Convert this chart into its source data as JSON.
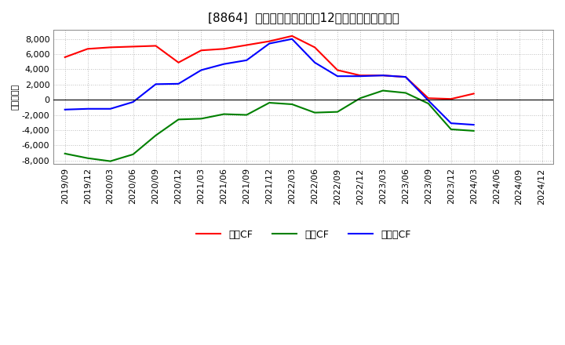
{
  "title": "[8864]  キャッシュフローの12か月移動合計の推移",
  "ylabel": "（百万円）",
  "background_color": "#ffffff",
  "plot_background": "#ffffff",
  "grid_color": "#aaaaaa",
  "ylim": [
    -8500,
    9200
  ],
  "yticks": [
    -8000,
    -6000,
    -4000,
    -2000,
    0,
    2000,
    4000,
    6000,
    8000
  ],
  "x_labels": [
    "2019/09",
    "2019/12",
    "2020/03",
    "2020/06",
    "2020/09",
    "2020/12",
    "2021/03",
    "2021/06",
    "2021/09",
    "2021/12",
    "2022/03",
    "2022/06",
    "2022/09",
    "2022/12",
    "2023/03",
    "2023/06",
    "2023/09",
    "2023/12",
    "2024/03",
    "2024/06",
    "2024/09",
    "2024/12"
  ],
  "operating_cf": [
    5600,
    6700,
    6900,
    7000,
    7100,
    4900,
    6500,
    6700,
    7200,
    7700,
    8400,
    6900,
    3900,
    3200,
    3200,
    3000,
    200,
    100,
    800,
    null,
    null,
    null
  ],
  "investing_cf": [
    -7100,
    -7700,
    -8100,
    -7200,
    -4700,
    -2600,
    -2500,
    -1900,
    -2000,
    -400,
    -600,
    -1700,
    -1600,
    200,
    1200,
    900,
    -500,
    -3900,
    -4100,
    null,
    null,
    null
  ],
  "free_cf": [
    -1300,
    -1200,
    -1200,
    -300,
    2050,
    2100,
    3900,
    4700,
    5200,
    7400,
    8000,
    4900,
    3100,
    3100,
    3200,
    3000,
    -100,
    -3100,
    -3300,
    null,
    null,
    null
  ],
  "line_colors": {
    "operating": "#ff0000",
    "investing": "#008000",
    "free": "#0000ff"
  },
  "legend_labels": {
    "operating": "営業CF",
    "investing": "投資CF",
    "free": "フリーCF"
  },
  "line_width": 1.5,
  "title_fontsize": 11,
  "axis_fontsize": 8,
  "legend_fontsize": 9
}
